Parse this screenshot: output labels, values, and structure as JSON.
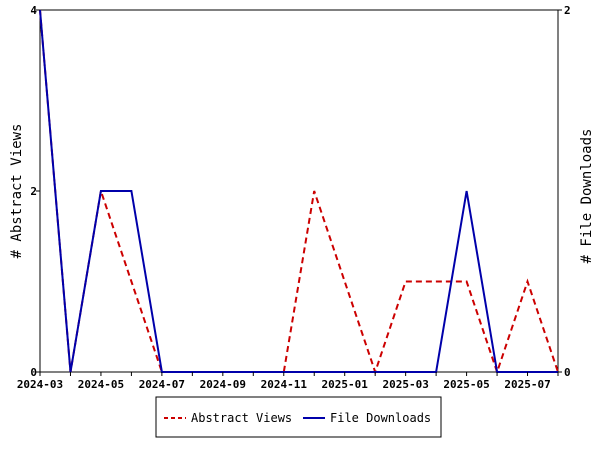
{
  "chart_data": {
    "type": "line",
    "x": [
      "2024-03",
      "2024-04",
      "2024-05",
      "2024-06",
      "2024-07",
      "2024-08",
      "2024-09",
      "2024-10",
      "2024-11",
      "2024-12",
      "2025-01",
      "2025-02",
      "2025-03",
      "2025-04",
      "2025-05",
      "2025-06",
      "2025-07",
      "2025-08"
    ],
    "x_tick_labels": [
      "2024-03",
      "2024-05",
      "2024-07",
      "2024-09",
      "2024-11",
      "2025-01",
      "2025-03",
      "2025-05",
      "2025-07"
    ],
    "series": [
      {
        "name": "Abstract Views",
        "axis": "left",
        "color": "#cc0000",
        "dash": "dashed",
        "values": [
          4,
          0,
          2,
          1,
          0,
          0,
          0,
          0,
          0,
          2,
          1,
          0,
          1,
          1,
          1,
          0,
          1,
          0
        ]
      },
      {
        "name": "File Downloads",
        "axis": "right",
        "color": "#0000aa",
        "dash": "solid",
        "values": [
          2,
          0,
          1,
          1,
          0,
          0,
          0,
          0,
          0,
          0,
          0,
          0,
          0,
          0,
          1,
          0,
          0,
          0
        ]
      }
    ],
    "ylabel": "# Abstract Views",
    "y2label": "# File Downloads",
    "ylim": [
      0,
      4
    ],
    "y_ticks": [
      "0",
      "2",
      "4"
    ],
    "y2lim": [
      0,
      2
    ],
    "y2_ticks": [
      "0",
      "2"
    ],
    "grid": false,
    "legend_position": "bottom-center"
  }
}
